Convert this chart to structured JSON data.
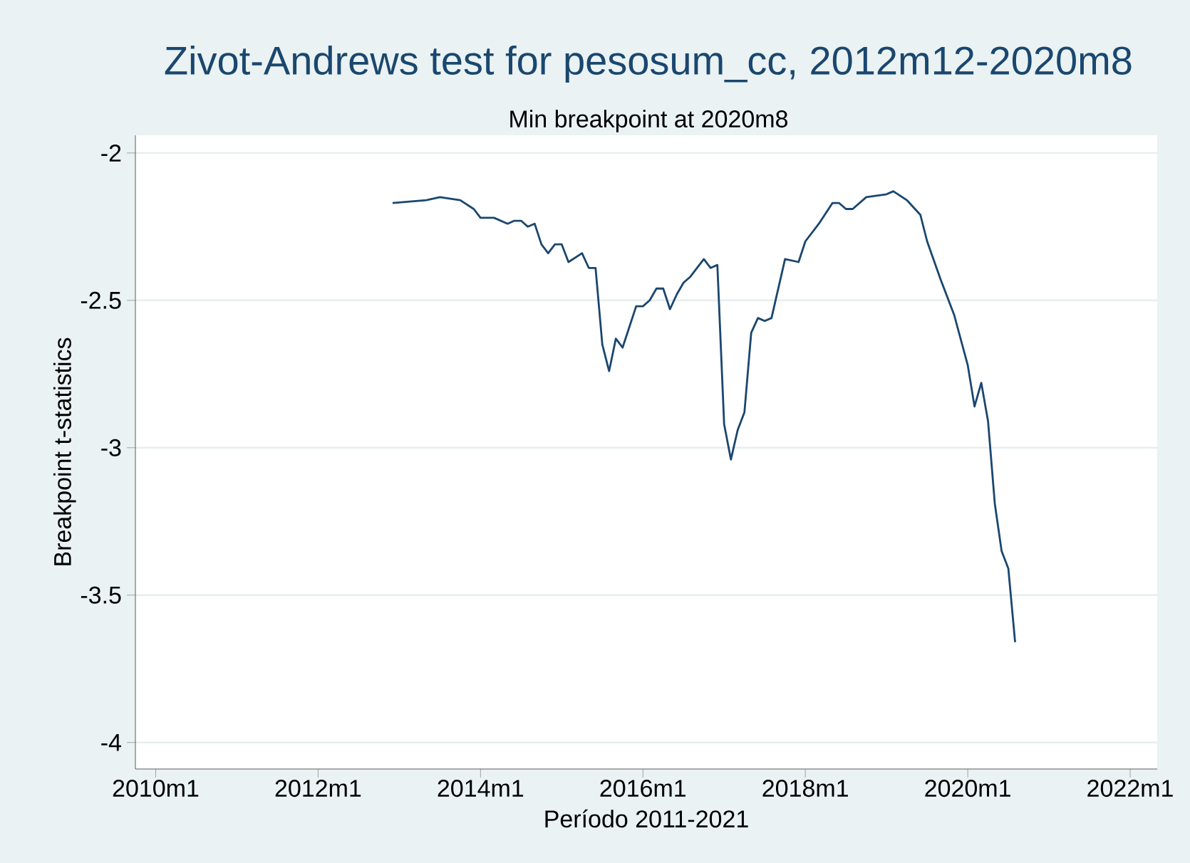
{
  "chart_data": {
    "type": "line",
    "title": "Zivot-Andrews test for pesosum_cc, 2012m12-2020m8",
    "subtitle": "Min breakpoint at 2020m8",
    "xlabel": "Período 2011-2021",
    "ylabel": "Breakpoint t-statistics",
    "x": [
      "2012-12",
      "2013-05",
      "2013-07",
      "2013-10",
      "2013-12",
      "2014-01",
      "2014-03",
      "2014-05",
      "2014-06",
      "2014-07",
      "2014-08",
      "2014-09",
      "2014-10",
      "2014-11",
      "2014-12",
      "2015-01",
      "2015-02",
      "2015-04",
      "2015-05",
      "2015-06",
      "2015-07",
      "2015-08",
      "2015-09",
      "2015-10",
      "2015-12",
      "2016-01",
      "2016-02",
      "2016-03",
      "2016-04",
      "2016-05",
      "2016-06",
      "2016-07",
      "2016-08",
      "2016-10",
      "2016-11",
      "2016-12",
      "2017-01",
      "2017-02",
      "2017-03",
      "2017-04",
      "2017-05",
      "2017-06",
      "2017-07",
      "2017-08",
      "2017-10",
      "2017-12",
      "2018-01",
      "2018-03",
      "2018-05",
      "2018-06",
      "2018-07",
      "2018-08",
      "2018-10",
      "2019-01",
      "2019-02",
      "2019-04",
      "2019-06",
      "2019-07",
      "2019-09",
      "2019-11",
      "2020-01",
      "2020-02",
      "2020-03",
      "2020-04",
      "2020-05",
      "2020-06",
      "2020-07",
      "2020-08"
    ],
    "values": [
      -2.17,
      -2.16,
      -2.15,
      -2.16,
      -2.19,
      -2.22,
      -2.22,
      -2.24,
      -2.23,
      -2.23,
      -2.25,
      -2.24,
      -2.31,
      -2.34,
      -2.31,
      -2.31,
      -2.37,
      -2.34,
      -2.39,
      -2.39,
      -2.65,
      -2.74,
      -2.63,
      -2.66,
      -2.52,
      -2.52,
      -2.5,
      -2.46,
      -2.46,
      -2.53,
      -2.48,
      -2.44,
      -2.42,
      -2.36,
      -2.39,
      -2.38,
      -2.92,
      -3.04,
      -2.94,
      -2.88,
      -2.61,
      -2.56,
      -2.57,
      -2.56,
      -2.36,
      -2.37,
      -2.3,
      -2.24,
      -2.17,
      -2.17,
      -2.19,
      -2.19,
      -2.15,
      -2.14,
      -2.13,
      -2.16,
      -2.21,
      -2.3,
      -2.43,
      -2.55,
      -2.72,
      -2.86,
      -2.78,
      -2.91,
      -3.19,
      -3.35,
      -3.41,
      -3.66
    ],
    "color": "#1a476f",
    "xlim": [
      "2009-10",
      "2022-05"
    ],
    "ylim": [
      -4.09,
      -1.94
    ],
    "xticks": [
      {
        "value": "2010-01",
        "label": "2010m1"
      },
      {
        "value": "2012-01",
        "label": "2012m1"
      },
      {
        "value": "2014-01",
        "label": "2014m1"
      },
      {
        "value": "2016-01",
        "label": "2016m1"
      },
      {
        "value": "2018-01",
        "label": "2018m1"
      },
      {
        "value": "2020-01",
        "label": "2020m1"
      },
      {
        "value": "2022-01",
        "label": "2022m1"
      }
    ],
    "yticks": [
      -2,
      -2.5,
      -3,
      -3.5,
      -4
    ],
    "grid": "y",
    "marker": "none",
    "line_style": "solid"
  }
}
